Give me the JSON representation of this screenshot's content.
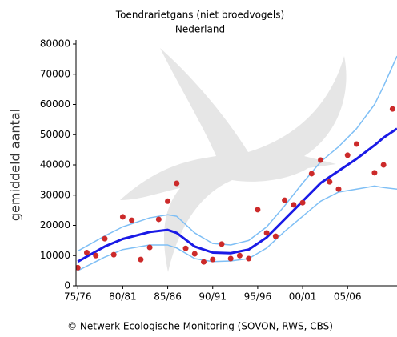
{
  "chart_data": {
    "type": "scatter",
    "title": "Toendrarietgans (niet broedvogels)",
    "subtitle": "Nederland",
    "y_label": "gemiddeld aantal",
    "footer": "© Netwerk Ecologische Monitoring (SOVON, RWS, CBS)",
    "xlim": [
      1974.8,
      2010.5
    ],
    "ylim": [
      0,
      80000
    ],
    "xticks": [
      {
        "value": 1975,
        "label": "75/76"
      },
      {
        "value": 1980,
        "label": "80/81"
      },
      {
        "value": 1985,
        "label": "85/86"
      },
      {
        "value": 1990,
        "label": "90/91"
      },
      {
        "value": 1995,
        "label": "95/96"
      },
      {
        "value": 2000,
        "label": "00/01"
      },
      {
        "value": 2005,
        "label": "05/06"
      }
    ],
    "yticks": [
      0,
      10000,
      20000,
      30000,
      40000,
      50000,
      60000,
      70000,
      80000
    ],
    "points": {
      "color": "#cc2a2a",
      "x": [
        1975,
        1976,
        1977,
        1978,
        1979,
        1980,
        1981,
        1982,
        1983,
        1984,
        1985,
        1986,
        1987,
        1988,
        1989,
        1990,
        1991,
        1992,
        1993,
        1994,
        1995,
        1996,
        1997,
        1998,
        1999,
        2000,
        2001,
        2002,
        2003,
        2004,
        2005,
        2006,
        2008,
        2009,
        2010
      ],
      "values": [
        6000,
        11000,
        10000,
        15600,
        10300,
        22800,
        21700,
        8700,
        12700,
        22000,
        28000,
        33900,
        12400,
        10600,
        7900,
        8700,
        13800,
        9000,
        10000,
        9000,
        25200,
        17500,
        16400,
        28300,
        26800,
        27500,
        37100,
        41600,
        34400,
        32000,
        43200,
        46900,
        37400,
        40000,
        58500
      ]
    },
    "series": [
      {
        "color": "#7fbff5",
        "width": 1.5,
        "x": [
          1975,
          1978,
          1980,
          1983,
          1985,
          1986,
          1988,
          1990,
          1992,
          1994,
          1996,
          1998,
          2000,
          2002,
          2004,
          2006,
          2008,
          2009,
          2010.5
        ],
        "values": [
          11500,
          16500,
          19500,
          22500,
          23500,
          23000,
          17500,
          14000,
          13500,
          15000,
          19500,
          26500,
          34000,
          41000,
          46000,
          52000,
          60000,
          66000,
          76000
        ]
      },
      {
        "color": "#7fbff5",
        "width": 1.5,
        "x": [
          1975,
          1978,
          1980,
          1983,
          1985,
          1986,
          1988,
          1990,
          1992,
          1994,
          1996,
          1998,
          2000,
          2002,
          2004,
          2006,
          2008,
          2009,
          2010.5
        ],
        "values": [
          5000,
          9500,
          12000,
          13500,
          13500,
          12500,
          9000,
          8000,
          8200,
          9000,
          12500,
          18000,
          23000,
          28000,
          31000,
          32000,
          33000,
          32500,
          32000
        ]
      },
      {
        "color": "#1a1ae6",
        "width": 3,
        "x": [
          1975,
          1978,
          1980,
          1983,
          1985,
          1986,
          1988,
          1990,
          1992,
          1994,
          1996,
          1998,
          2000,
          2002,
          2004,
          2006,
          2008,
          2009,
          2010.5
        ],
        "values": [
          8000,
          13000,
          15500,
          17800,
          18500,
          17500,
          13000,
          11000,
          10800,
          12000,
          16000,
          22000,
          28000,
          34000,
          38000,
          42000,
          46500,
          49000,
          52000
        ]
      }
    ]
  }
}
